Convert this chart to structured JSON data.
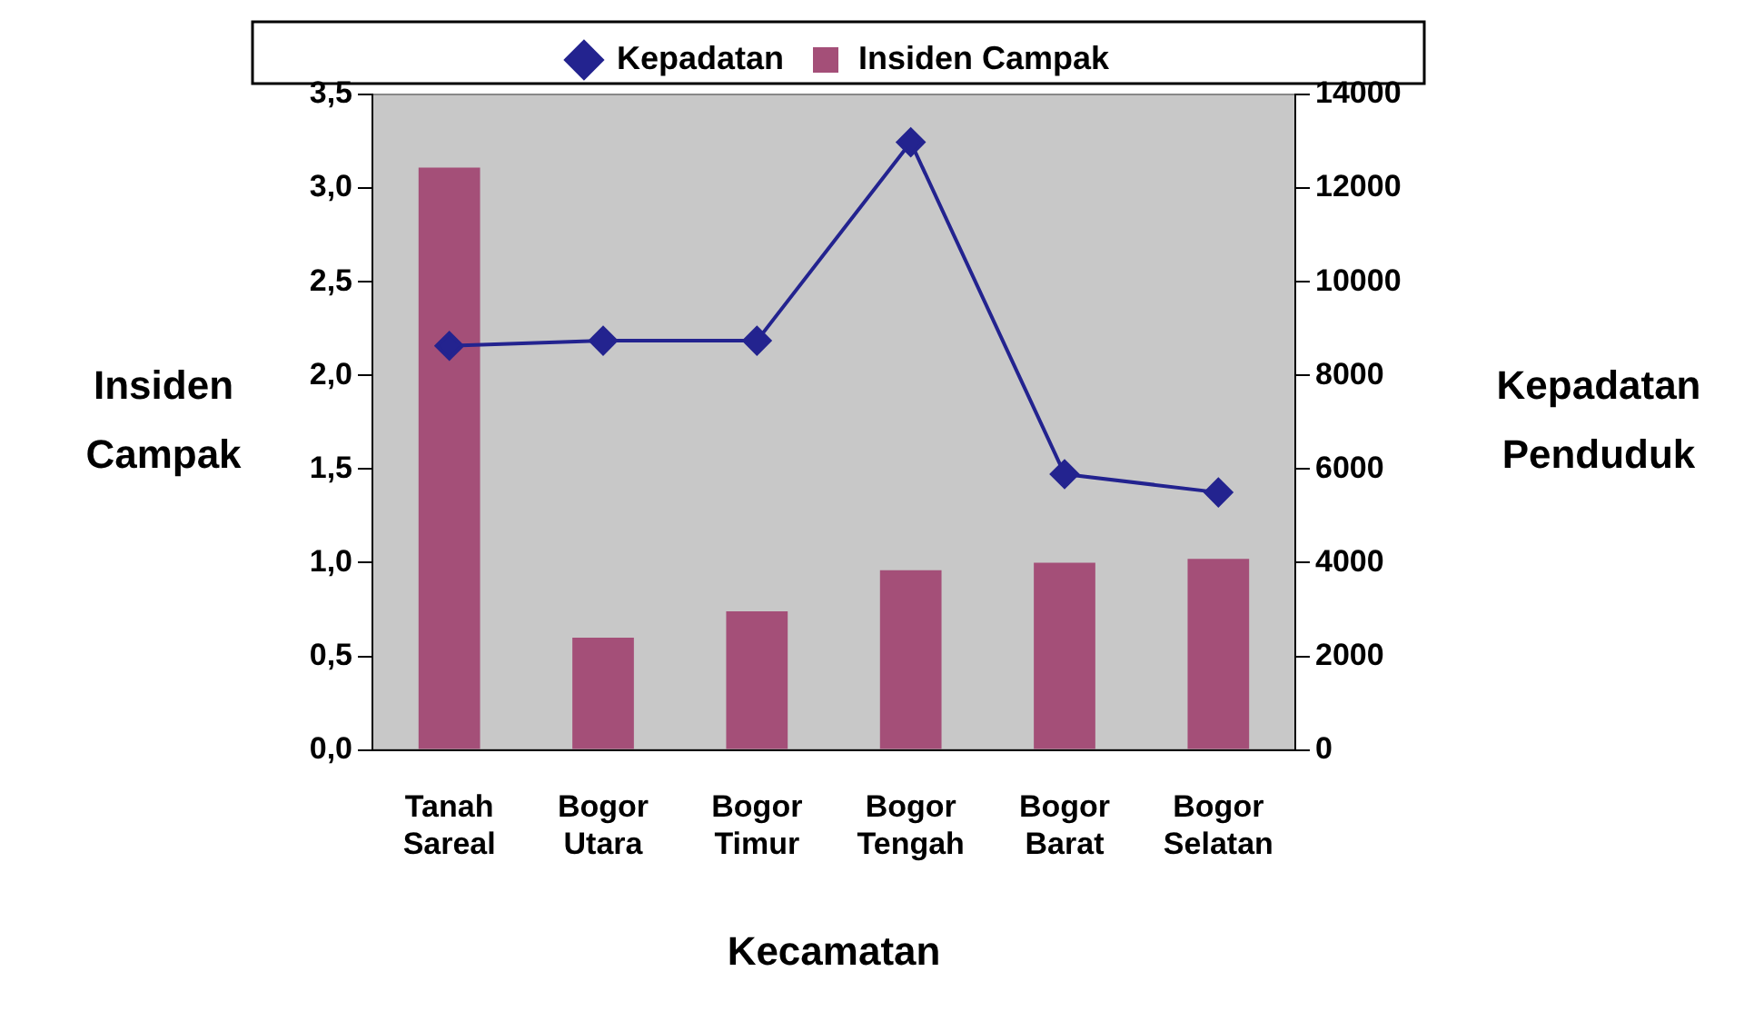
{
  "chart_data": {
    "type": "bar",
    "categories": [
      "Tanah Sareal",
      "Bogor Utara",
      "Bogor Timur",
      "Bogor Tengah",
      "Bogor Barat",
      "Bogor Selatan"
    ],
    "series": [
      {
        "name": "Insiden Campak",
        "color": "#a44f78",
        "values": [
          3.11,
          0.6,
          0.74,
          0.96,
          1.0,
          1.02
        ]
      },
      {
        "name": "Kepadatan",
        "type": "line",
        "axis": "y2",
        "color": "#23238f",
        "values": [
          8630,
          8740,
          8740,
          12980,
          5890,
          5500
        ]
      }
    ],
    "xlabel": "Kecamatan",
    "ylabel": "Insiden Campak",
    "y2label": "Kepadatan Penduduk",
    "ylim": [
      0,
      3.5
    ],
    "yticks": [
      {
        "value": 0,
        "label": "0,0"
      },
      {
        "value": 0.5,
        "label": "0,5"
      },
      {
        "value": 1,
        "label": "1,0"
      },
      {
        "value": 1.5,
        "label": "1,5"
      },
      {
        "value": 2,
        "label": "2,0"
      },
      {
        "value": 2.5,
        "label": "2,5"
      },
      {
        "value": 3,
        "label": "3,0"
      },
      {
        "value": 3.5,
        "label": "3,5"
      }
    ],
    "y2lim": [
      0,
      14000
    ],
    "y2ticks": [
      0,
      2000,
      4000,
      6000,
      8000,
      10000,
      12000,
      14000
    ],
    "grid": false,
    "legend": "top",
    "marker": "diamond",
    "line_style": "solid"
  }
}
